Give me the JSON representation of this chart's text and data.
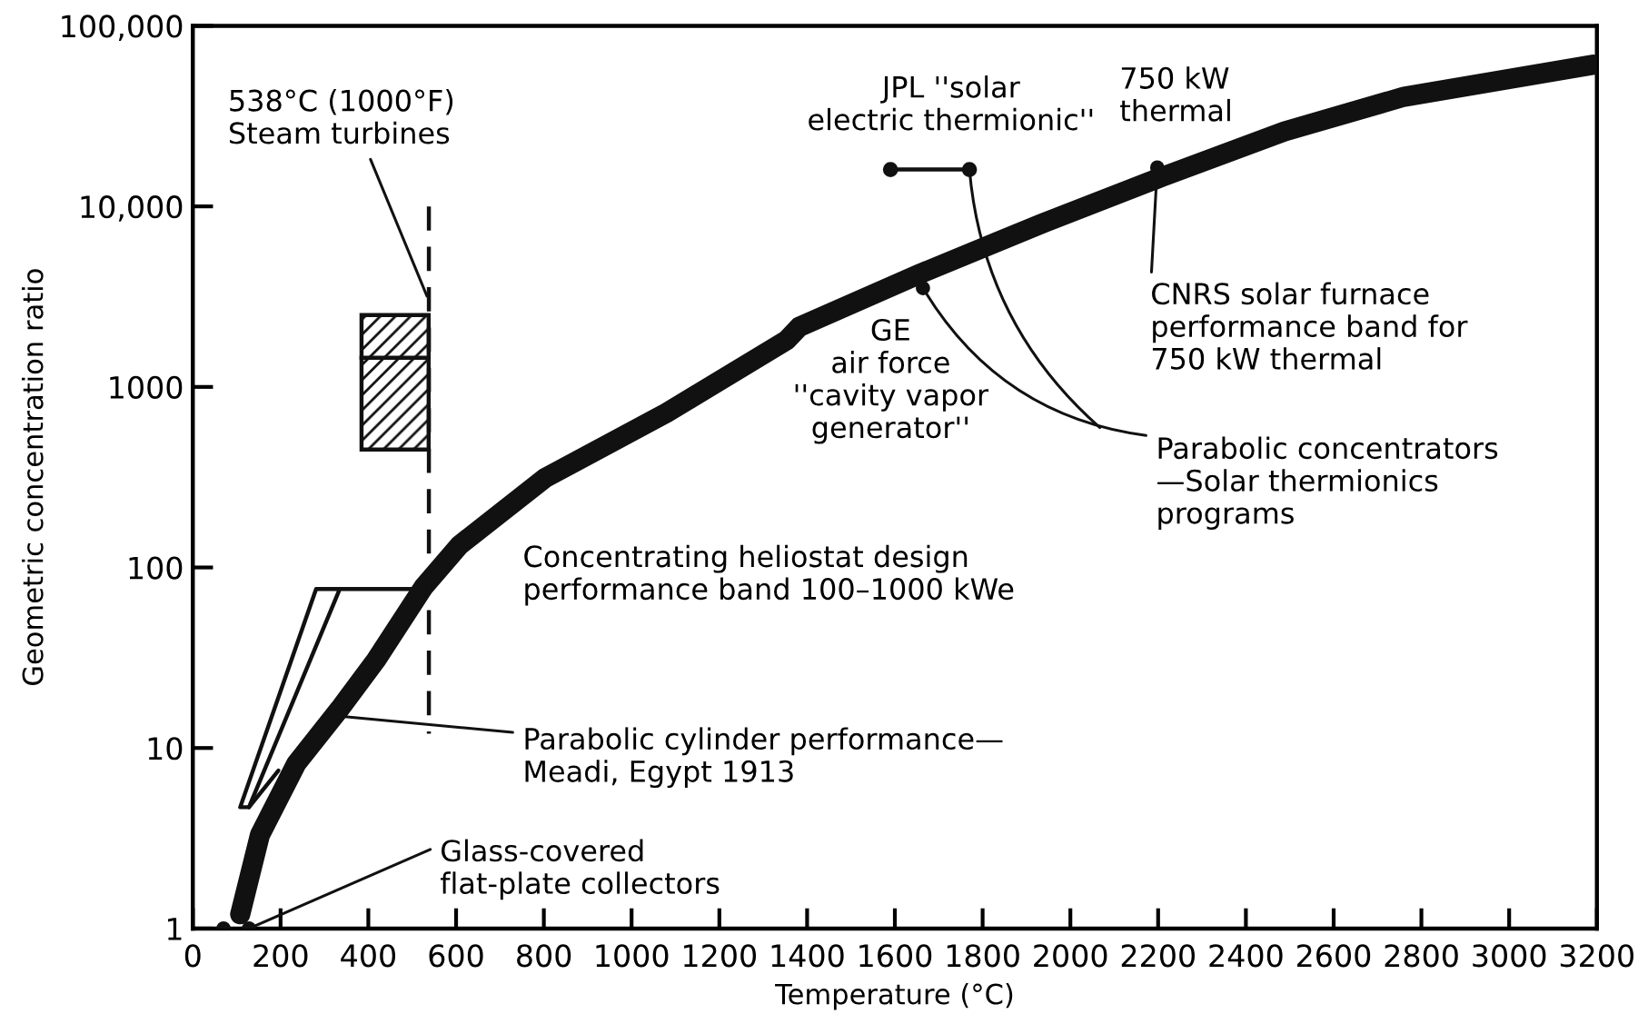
{
  "chart_data": {
    "type": "line",
    "xlabel": "Temperature (°C)",
    "ylabel": "Geometric concentration ratio",
    "xlim": [
      0,
      3200
    ],
    "xticks": [
      0,
      200,
      400,
      600,
      800,
      1000,
      1200,
      1400,
      1600,
      1800,
      2000,
      2200,
      2400,
      2600,
      2800,
      3000,
      3200
    ],
    "ylim": [
      1,
      100000
    ],
    "yticks": [
      1,
      10,
      100,
      1000,
      {
        "value": 10000,
        "label": "10,000"
      },
      {
        "value": 100000,
        "label": "100,000"
      }
    ],
    "log": "y",
    "grid": false,
    "legend": false,
    "series": [
      {
        "color": "#111111",
        "x": [
          108,
          153,
          236,
          335,
          418,
          526,
          608,
          803,
          1080,
          1354,
          1382,
          1660,
          1933,
          2210,
          2488,
          2761,
          3191
        ],
        "values": [
          1.2,
          3.3,
          8.2,
          16.5,
          30.8,
          78,
          133,
          313,
          720,
          1820,
          2150,
          4260,
          8000,
          14600,
          26000,
          40500,
          60900
        ]
      },
      {
        "color": "#111111",
        "line_style": "dashed",
        "x": [
          538,
          538
        ],
        "values": [
          10000,
          12
        ]
      },
      {
        "color": "#111111",
        "marker": "circle",
        "x": [
          1590,
          1770
        ],
        "values": [
          16000,
          16000
        ]
      },
      {
        "color": "#111111",
        "x": [
          513,
          281,
          108,
          128,
          335
        ],
        "values": [
          76,
          76,
          4.7,
          4.7,
          76
        ]
      },
      {
        "color": "#111111",
        "x": [
          128,
          195
        ],
        "values": [
          4.7,
          7.5
        ]
      },
      {
        "type": "bar",
        "color": "#111111",
        "x": [
          461
        ],
        "base": [
          450
        ],
        "values": [
          1000
        ]
      },
      {
        "type": "bar",
        "color": "#111111",
        "x": [
          461
        ],
        "base": [
          1450
        ],
        "values": [
          1050
        ]
      },
      {
        "type": "scatter",
        "color": "#111111",
        "marker": "circle",
        "x": [
          70,
          128,
          1664,
          2198
        ],
        "values": [
          1,
          1,
          3530,
          16400
        ]
      }
    ],
    "annotations": [
      {
        "text": "538°C (1000°F)\nSteam turbines",
        "x": 538,
        "y": 3000
      },
      "JPL ''solar\nelectric thermionic''",
      "750 kW\nthermal",
      {
        "text": "CNRS solar furnace\nperformance band for\n750 kW thermal",
        "x": 2198,
        "y": 16400
      },
      "GE\nair force\n''cavity vapor\ngenerator''",
      "Concentrating heliostat design\nperformance band 100–1000 kWe",
      {
        "text": "Parabolic cylinder performance—\nMeadi, Egypt 1913",
        "x": 335,
        "y": 15
      },
      {
        "text": "Glass-covered\nflat-plate collectors",
        "x": 128,
        "y": 1
      },
      {
        "text": "Parabolic concentrators\n—Solar thermionics\nprograms",
        "x": 1664,
        "y": 3530
      }
    ]
  }
}
